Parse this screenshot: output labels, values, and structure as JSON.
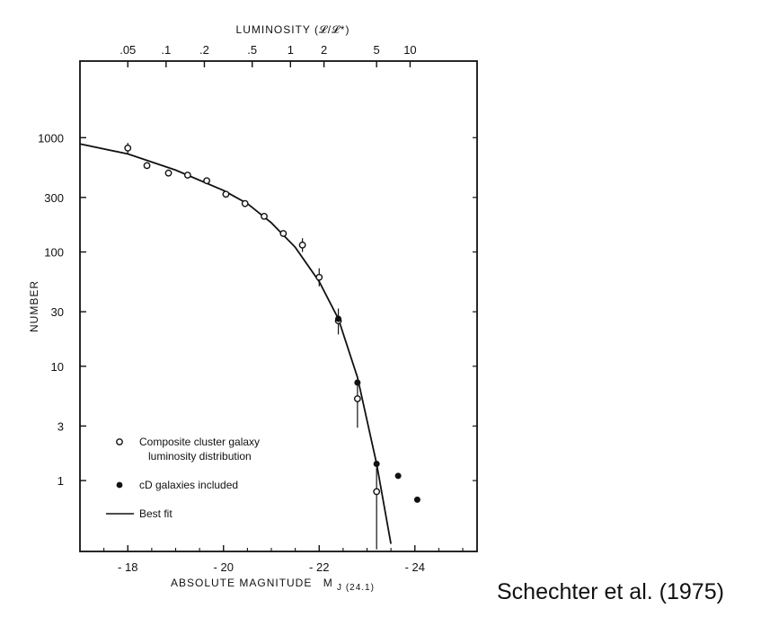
{
  "chart_data": {
    "type": "scatter",
    "title": "",
    "xlabel": "ABSOLUTE MAGNITUDE",
    "xlabel_symbol": "M",
    "xlabel_subscript": "J (24.1)",
    "ylabel": "NUMBER",
    "x2label": "LUMINOSITY (𝓛/𝓛*)",
    "xlim": [
      -17,
      -25.3
    ],
    "ylim_log10": [
      -0.62,
      3.67
    ],
    "y_scale": "log",
    "x_ticks": [
      -18,
      -20,
      -22,
      -24
    ],
    "x_tick_labels": [
      "- 18",
      "- 20",
      "- 22",
      "- 24"
    ],
    "y_ticks": [
      1,
      3,
      10,
      30,
      100,
      300,
      1000
    ],
    "y_tick_labels": [
      "1",
      "3",
      "10",
      "30",
      "100",
      "300",
      "1000"
    ],
    "luminosity_ticks": [
      {
        "label": ".05",
        "x": -18.0
      },
      {
        "label": ".1",
        "x": -18.8
      },
      {
        "label": ".2",
        "x": -19.6
      },
      {
        "label": ".5",
        "x": -20.6
      },
      {
        "label": "1",
        "x": -21.4
      },
      {
        "label": "2",
        "x": -22.1
      },
      {
        "label": "5",
        "x": -23.2
      },
      {
        "label": "10",
        "x": -23.9
      }
    ],
    "grid": false,
    "legend_position": "bottom-left",
    "series": [
      {
        "name": "Composite cluster galaxy luminosity distribution",
        "marker": "open-circle",
        "points": [
          {
            "x": -18.0,
            "y": 810,
            "err_lo": 720,
            "err_hi": 900
          },
          {
            "x": -18.4,
            "y": 570
          },
          {
            "x": -18.85,
            "y": 490
          },
          {
            "x": -19.25,
            "y": 470
          },
          {
            "x": -19.65,
            "y": 420
          },
          {
            "x": -20.05,
            "y": 320
          },
          {
            "x": -20.45,
            "y": 265
          },
          {
            "x": -20.85,
            "y": 205
          },
          {
            "x": -21.25,
            "y": 145
          },
          {
            "x": -21.65,
            "y": 115,
            "err_lo": 100,
            "err_hi": 132
          },
          {
            "x": -22.0,
            "y": 60,
            "err_lo": 50,
            "err_hi": 72
          },
          {
            "x": -22.4,
            "y": 25,
            "err_lo": 19,
            "err_hi": 32
          },
          {
            "x": -22.8,
            "y": 5.2,
            "err_lo": 2.9,
            "err_hi": 7.2
          },
          {
            "x": -23.2,
            "y": 0.8,
            "err_lo": 0.25,
            "err_hi": 1.3
          }
        ]
      },
      {
        "name": "cD galaxies included",
        "marker": "filled-circle",
        "points": [
          {
            "x": -22.4,
            "y": 26
          },
          {
            "x": -22.8,
            "y": 7.2
          },
          {
            "x": -23.2,
            "y": 1.4
          },
          {
            "x": -23.65,
            "y": 1.1
          },
          {
            "x": -24.05,
            "y": 0.68
          }
        ]
      },
      {
        "name": "Best fit",
        "marker": "line",
        "points": [
          {
            "x": -17.0,
            "y": 880
          },
          {
            "x": -18.0,
            "y": 720
          },
          {
            "x": -19.0,
            "y": 520
          },
          {
            "x": -20.0,
            "y": 345
          },
          {
            "x": -20.5,
            "y": 265
          },
          {
            "x": -21.0,
            "y": 180
          },
          {
            "x": -21.5,
            "y": 110
          },
          {
            "x": -22.0,
            "y": 55
          },
          {
            "x": -22.4,
            "y": 26
          },
          {
            "x": -22.8,
            "y": 8.0
          },
          {
            "x": -23.2,
            "y": 1.4
          },
          {
            "x": -23.5,
            "y": 0.28
          }
        ]
      }
    ]
  },
  "legend": {
    "open_line1": "Composite cluster galaxy",
    "open_line2": "luminosity distribution",
    "filled": "cD galaxies included",
    "line": "Best fit"
  },
  "citation": "Schechter et al. (1975)"
}
